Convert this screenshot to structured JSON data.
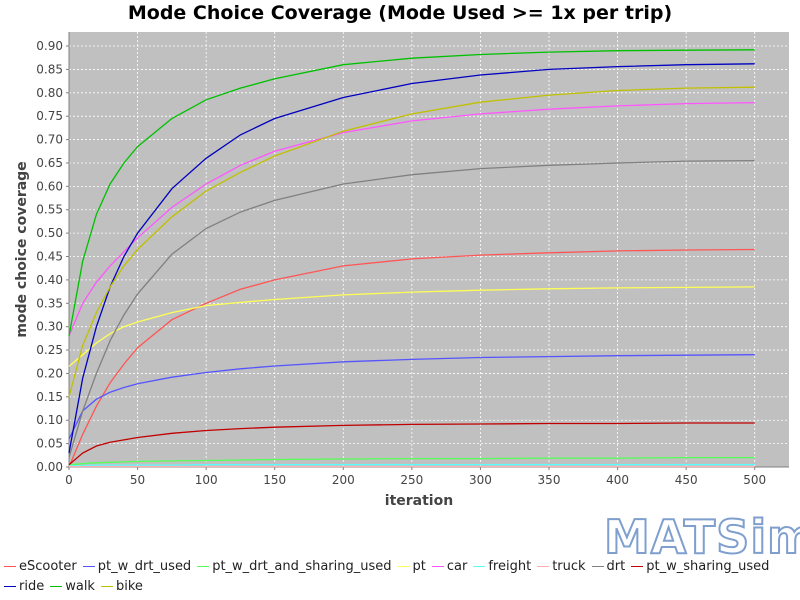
{
  "chart_data": {
    "type": "line",
    "title": "Mode Choice Coverage (Mode Used >= 1x per trip)",
    "xlabel": "iteration",
    "ylabel": "mode choice coverage",
    "xlim": [
      0,
      525
    ],
    "ylim": [
      0,
      0.93
    ],
    "xticks": [
      0,
      50,
      100,
      150,
      200,
      250,
      300,
      350,
      400,
      450,
      500
    ],
    "yticks": [
      0.0,
      0.05,
      0.1,
      0.15,
      0.2,
      0.25,
      0.3,
      0.35,
      0.4,
      0.45,
      0.5,
      0.55,
      0.6,
      0.65,
      0.7,
      0.75,
      0.8,
      0.85,
      0.9
    ],
    "ytick_labels": [
      "0.00",
      "0.05",
      "0.10",
      "0.15",
      "0.20",
      "0.25",
      "0.30",
      "0.35",
      "0.40",
      "0.45",
      "0.50",
      "0.55",
      "0.60",
      "0.65",
      "0.70",
      "0.75",
      "0.80",
      "0.85",
      "0.90"
    ],
    "grid": true,
    "legend_position": "bottom",
    "background": "#c0c0c0",
    "x": [
      0,
      10,
      20,
      30,
      40,
      50,
      75,
      100,
      125,
      150,
      200,
      250,
      300,
      350,
      400,
      450,
      500
    ],
    "series": [
      {
        "name": "eScooter",
        "color": "#ff5555",
        "values": [
          0.0,
          0.07,
          0.13,
          0.18,
          0.22,
          0.255,
          0.315,
          0.35,
          0.38,
          0.4,
          0.43,
          0.445,
          0.453,
          0.458,
          0.462,
          0.464,
          0.465
        ]
      },
      {
        "name": "pt_w_drt_used",
        "color": "#5555ff",
        "values": [
          0.06,
          0.12,
          0.145,
          0.16,
          0.17,
          0.178,
          0.192,
          0.202,
          0.21,
          0.216,
          0.225,
          0.23,
          0.234,
          0.236,
          0.238,
          0.239,
          0.24
        ]
      },
      {
        "name": "pt_w_drt_and_sharing_used",
        "color": "#55ff55",
        "values": [
          0.005,
          0.007,
          0.009,
          0.01,
          0.011,
          0.012,
          0.013,
          0.014,
          0.015,
          0.016,
          0.017,
          0.018,
          0.018,
          0.019,
          0.019,
          0.02,
          0.02
        ]
      },
      {
        "name": "pt",
        "color": "#ffff55",
        "values": [
          0.215,
          0.24,
          0.265,
          0.285,
          0.3,
          0.31,
          0.33,
          0.345,
          0.352,
          0.358,
          0.368,
          0.374,
          0.378,
          0.381,
          0.383,
          0.384,
          0.385
        ]
      },
      {
        "name": "car",
        "color": "#ff55ff",
        "values": [
          0.28,
          0.35,
          0.395,
          0.43,
          0.46,
          0.49,
          0.555,
          0.605,
          0.645,
          0.675,
          0.715,
          0.74,
          0.755,
          0.765,
          0.772,
          0.777,
          0.779
        ]
      },
      {
        "name": "freight",
        "color": "#55ffff",
        "values": [
          0.003,
          0.003,
          0.004,
          0.004,
          0.004,
          0.004,
          0.004,
          0.005,
          0.005,
          0.005,
          0.005,
          0.005,
          0.005,
          0.005,
          0.005,
          0.005,
          0.005
        ]
      },
      {
        "name": "truck",
        "color": "#ffafaf",
        "values": [
          0.001,
          0.001,
          0.001,
          0.001,
          0.001,
          0.001,
          0.001,
          0.001,
          0.001,
          0.001,
          0.001,
          0.001,
          0.001,
          0.001,
          0.001,
          0.001,
          0.001
        ]
      },
      {
        "name": "drt",
        "color": "#808080",
        "values": [
          0.02,
          0.12,
          0.2,
          0.27,
          0.325,
          0.37,
          0.455,
          0.51,
          0.545,
          0.57,
          0.605,
          0.625,
          0.638,
          0.645,
          0.65,
          0.654,
          0.655
        ]
      },
      {
        "name": "pt_w_sharing_used",
        "color": "#c00000",
        "values": [
          0.005,
          0.03,
          0.045,
          0.053,
          0.058,
          0.063,
          0.072,
          0.078,
          0.082,
          0.085,
          0.089,
          0.091,
          0.092,
          0.093,
          0.093,
          0.094,
          0.094
        ]
      },
      {
        "name": "ride",
        "color": "#0000c0",
        "values": [
          0.03,
          0.19,
          0.3,
          0.385,
          0.45,
          0.5,
          0.595,
          0.66,
          0.71,
          0.745,
          0.79,
          0.82,
          0.838,
          0.85,
          0.856,
          0.86,
          0.862
        ]
      },
      {
        "name": "walk",
        "color": "#00c000",
        "values": [
          0.28,
          0.44,
          0.54,
          0.605,
          0.65,
          0.685,
          0.745,
          0.785,
          0.81,
          0.83,
          0.86,
          0.874,
          0.882,
          0.887,
          0.89,
          0.891,
          0.892
        ]
      },
      {
        "name": "bike",
        "color": "#c0c000",
        "values": [
          0.15,
          0.26,
          0.33,
          0.385,
          0.43,
          0.465,
          0.535,
          0.59,
          0.63,
          0.665,
          0.718,
          0.755,
          0.78,
          0.795,
          0.805,
          0.81,
          0.812
        ]
      }
    ]
  },
  "logo": {
    "text": "MATSim"
  }
}
